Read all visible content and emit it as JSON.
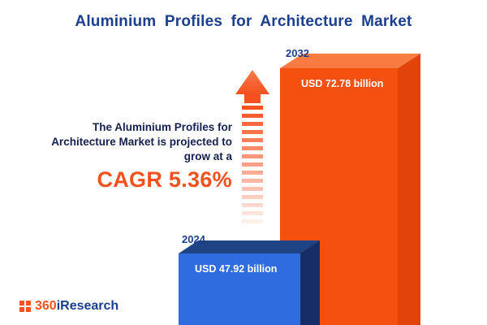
{
  "title": "Aluminium Profiles for Architecture Market",
  "annotation": {
    "line1": "The Aluminium Profiles for",
    "line2": "Architecture Market is projected to",
    "line3": "grow at a",
    "cagr": "CAGR 5.36%"
  },
  "logo": {
    "accent": "360",
    "rest": "iResearch"
  },
  "colors": {
    "title_blue": "#1b3f8e",
    "accent_orange": "#f4511e",
    "bar_blue_front": "#2e6ce0",
    "bar_blue_dark": "#152f66",
    "bar_orange_front": "#f4500f",
    "bar_orange_side": "#e2430b",
    "bar_orange_top": "#f87c42",
    "text_dark": "#15204f"
  },
  "chart_data": {
    "type": "bar",
    "title": "Aluminium Profiles for Architecture Market",
    "categories": [
      "2024",
      "2032"
    ],
    "values": [
      47.92,
      72.78
    ],
    "value_labels": [
      "USD 47.92 billion",
      "USD 72.78 billion"
    ],
    "unit": "USD billion",
    "cagr_percent": 5.36,
    "annotation": "The Aluminium Profiles for Architecture Market is projected to grow at a CAGR 5.36%",
    "legend": "none",
    "axes": "none",
    "not_to_scale": true
  }
}
